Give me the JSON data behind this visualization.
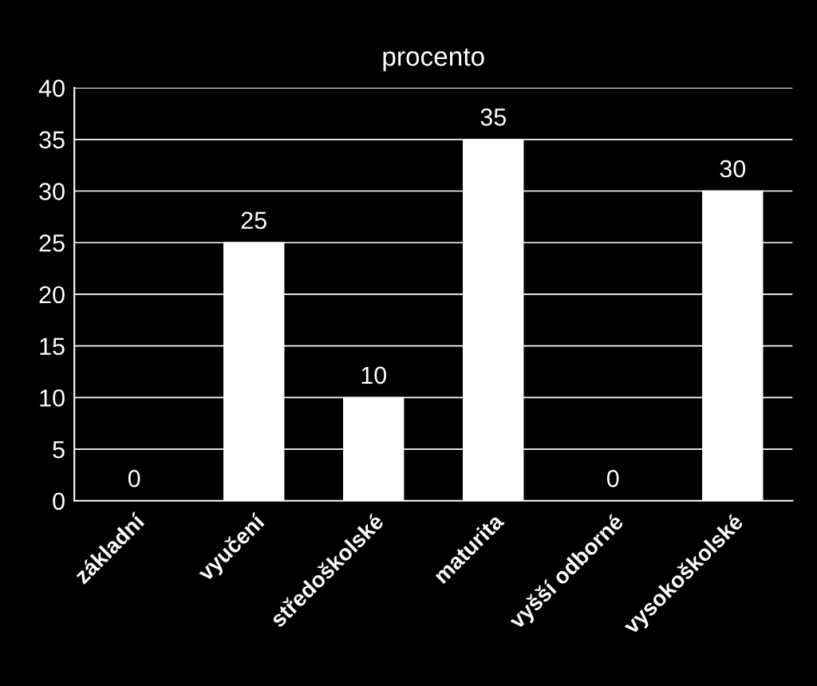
{
  "chart_data": {
    "type": "bar",
    "title": "procento",
    "categories": [
      "základní",
      "vyučení",
      "středoškolské",
      "maturita",
      "vyšší odborné",
      "vysokoškolské"
    ],
    "values": [
      0,
      25,
      10,
      35,
      0,
      30
    ],
    "color": "#ffffff",
    "ylim": [
      0,
      40
    ],
    "yticks": [
      0,
      5,
      10,
      15,
      20,
      25,
      30,
      35,
      40
    ],
    "grid": "y",
    "data_labels": true
  }
}
